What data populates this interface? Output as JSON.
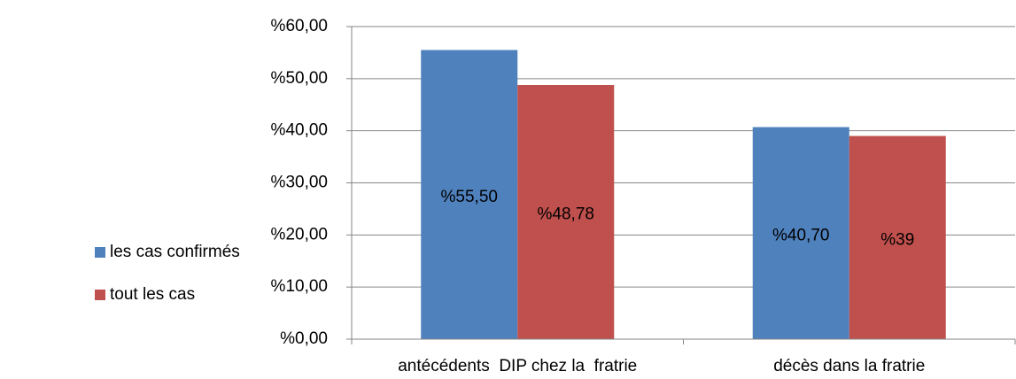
{
  "chart_data": {
    "type": "bar",
    "categories": [
      "antécédents  DIP chez la  fratrie",
      "décès dans la fratrie"
    ],
    "series": [
      {
        "name": "les cas confirmés",
        "color": "#4f81bd",
        "values": [
          55.5,
          40.7
        ],
        "value_labels": [
          "%55,50",
          "%40,70"
        ]
      },
      {
        "name": "tout les cas",
        "color": "#c0504d",
        "values": [
          48.78,
          39
        ],
        "value_labels": [
          "%48,78",
          "%39"
        ]
      }
    ],
    "ylim": [
      0,
      60
    ],
    "yticks": [
      {
        "value": 0,
        "label": "%0,00"
      },
      {
        "value": 10,
        "label": "%10,00"
      },
      {
        "value": 20,
        "label": "%20,00"
      },
      {
        "value": 30,
        "label": "%30,00"
      },
      {
        "value": 40,
        "label": "%40,00"
      },
      {
        "value": 50,
        "label": "%50,00"
      },
      {
        "value": 60,
        "label": "%60,00"
      }
    ],
    "grid": true,
    "legend": "left"
  }
}
